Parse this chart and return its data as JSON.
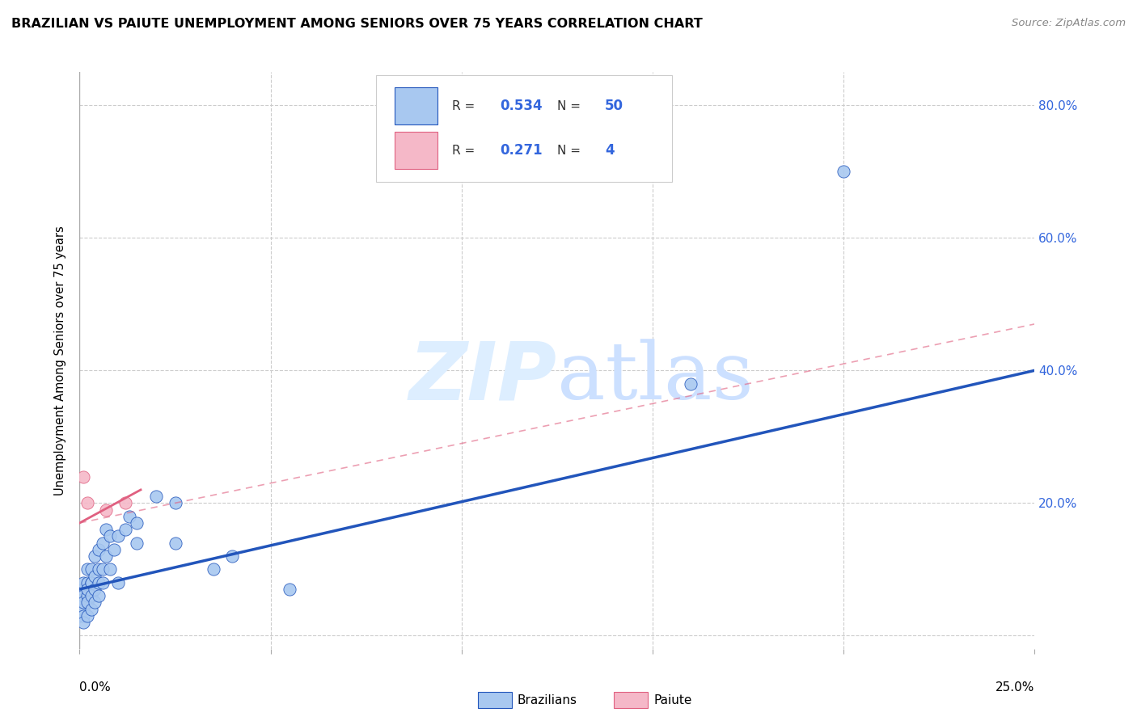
{
  "title": "BRAZILIAN VS PAIUTE UNEMPLOYMENT AMONG SENIORS OVER 75 YEARS CORRELATION CHART",
  "source": "Source: ZipAtlas.com",
  "ylabel": "Unemployment Among Seniors over 75 years",
  "xlim": [
    0.0,
    0.25
  ],
  "ylim": [
    -0.02,
    0.85
  ],
  "legend_R_blue": "0.534",
  "legend_N_blue": "50",
  "legend_R_pink": "0.271",
  "legend_N_pink": "4",
  "blue_scatter_x": [
    0.0,
    0.0,
    0.001,
    0.001,
    0.001,
    0.001,
    0.001,
    0.001,
    0.001,
    0.002,
    0.002,
    0.002,
    0.002,
    0.002,
    0.002,
    0.003,
    0.003,
    0.003,
    0.003,
    0.003,
    0.004,
    0.004,
    0.004,
    0.004,
    0.005,
    0.005,
    0.005,
    0.005,
    0.006,
    0.006,
    0.006,
    0.007,
    0.007,
    0.008,
    0.008,
    0.009,
    0.01,
    0.01,
    0.012,
    0.013,
    0.015,
    0.015,
    0.02,
    0.025,
    0.025,
    0.035,
    0.04,
    0.055,
    0.16,
    0.2
  ],
  "blue_scatter_y": [
    0.05,
    0.03,
    0.07,
    0.06,
    0.04,
    0.08,
    0.03,
    0.02,
    0.05,
    0.06,
    0.08,
    0.1,
    0.05,
    0.07,
    0.03,
    0.08,
    0.1,
    0.06,
    0.04,
    0.08,
    0.09,
    0.12,
    0.07,
    0.05,
    0.1,
    0.08,
    0.13,
    0.06,
    0.14,
    0.1,
    0.08,
    0.16,
    0.12,
    0.15,
    0.1,
    0.13,
    0.15,
    0.08,
    0.16,
    0.18,
    0.14,
    0.17,
    0.21,
    0.2,
    0.14,
    0.1,
    0.12,
    0.07,
    0.38,
    0.7
  ],
  "pink_scatter_x": [
    0.001,
    0.002,
    0.007,
    0.012
  ],
  "pink_scatter_y": [
    0.24,
    0.2,
    0.19,
    0.2
  ],
  "blue_line_x": [
    0.0,
    0.25
  ],
  "blue_line_y": [
    0.07,
    0.4
  ],
  "pink_solid_line_x": [
    0.0,
    0.016
  ],
  "pink_solid_line_y": [
    0.17,
    0.22
  ],
  "pink_dash_line_x": [
    0.0,
    0.25
  ],
  "pink_dash_line_y": [
    0.17,
    0.47
  ],
  "watermark_zip": "ZIP",
  "watermark_atlas": "atlas",
  "blue_color": "#a8c8f0",
  "blue_line_color": "#2255bb",
  "pink_color": "#f5b8c8",
  "pink_line_color": "#e06080",
  "marker_size": 120,
  "grid_color": "#cccccc",
  "right_tick_color": "#3366dd"
}
